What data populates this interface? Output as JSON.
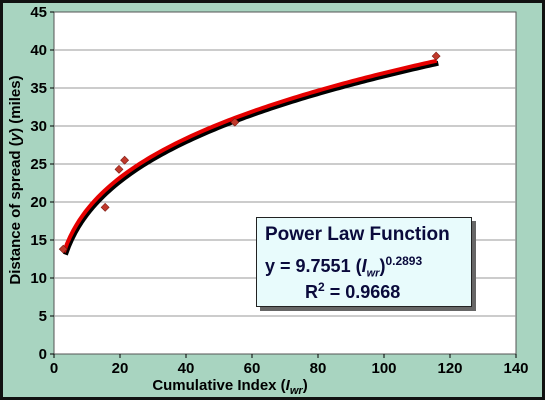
{
  "chart_data": {
    "type": "scatter",
    "xlabel_prefix": "Cumulative Index (",
    "xlabel_var": "I",
    "xlabel_sub": "wr",
    "xlabel_suffix": ")",
    "ylabel_prefix": "Distance of spread  (",
    "ylabel_var": "y",
    "ylabel_suffix": ") (miles)",
    "xlim": [
      0,
      140
    ],
    "ylim": [
      0,
      45
    ],
    "xticks": [
      0,
      20,
      40,
      60,
      80,
      100,
      120,
      140
    ],
    "yticks": [
      0,
      5,
      10,
      15,
      20,
      25,
      30,
      35,
      40,
      45
    ],
    "grid": "horizontal",
    "points": [
      {
        "x": 2.8,
        "y": 13.8
      },
      {
        "x": 15.5,
        "y": 19.3
      },
      {
        "x": 19.7,
        "y": 24.3
      },
      {
        "x": 21.4,
        "y": 25.5
      },
      {
        "x": 54.8,
        "y": 30.5
      },
      {
        "x": 115.8,
        "y": 39.2
      }
    ],
    "fit": {
      "type": "power",
      "coefficient": 9.7551,
      "exponent": 0.2893,
      "x_range": [
        3,
        116
      ],
      "line_color": "#e60000",
      "shadow_color": "#000000"
    },
    "marker_color": "#c0392b",
    "plot_bg": "#ffffff",
    "frame_bg": "#a8d4c0"
  },
  "annotation": {
    "title": "Power Law Function",
    "eq_prefix": "y = 9.7551 (",
    "eq_var": "I",
    "eq_sub": "wr",
    "eq_close": ")",
    "eq_exp": "0.2893",
    "r2_label": "R",
    "r2_exp": "2",
    "r2_value": " = 0.9668"
  }
}
